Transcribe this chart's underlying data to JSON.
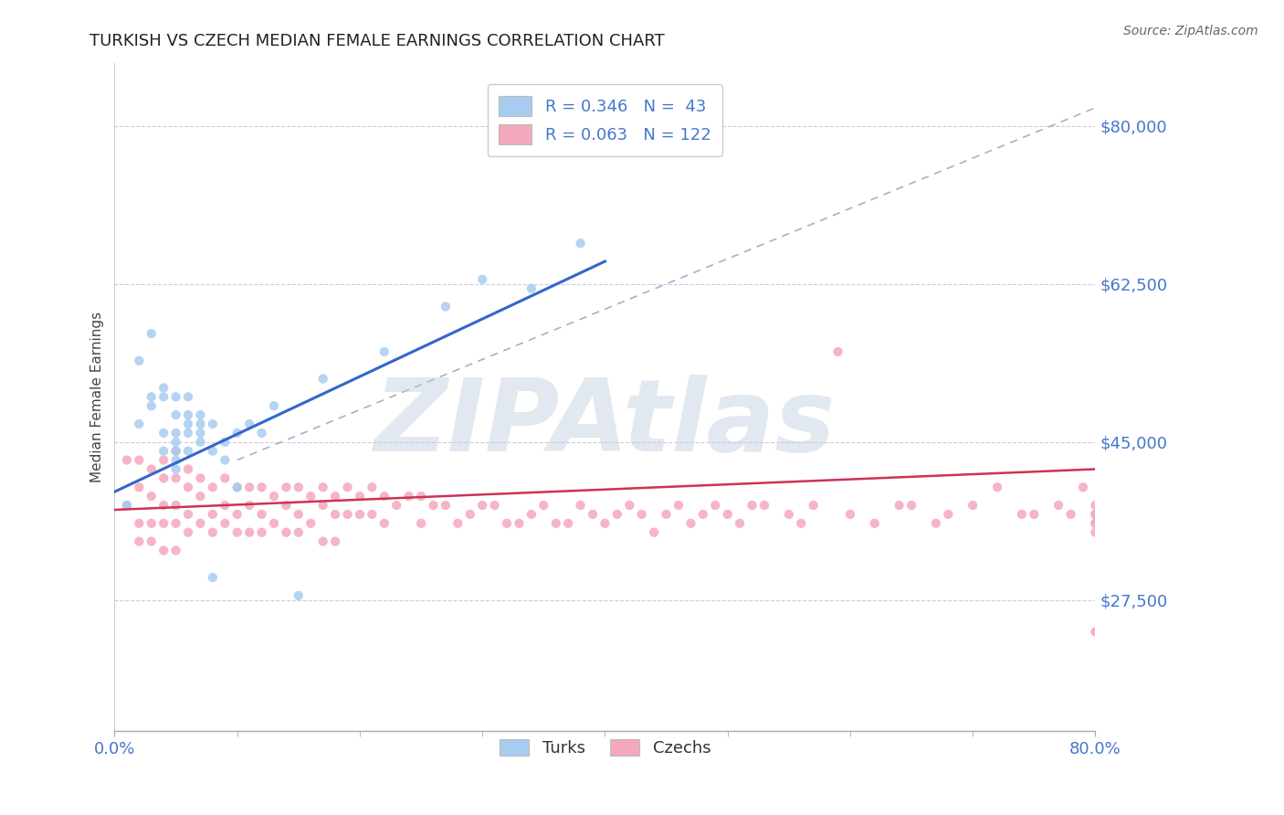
{
  "title": "TURKISH VS CZECH MEDIAN FEMALE EARNINGS CORRELATION CHART",
  "source": "Source: ZipAtlas.com",
  "ylabel": "Median Female Earnings",
  "xlim": [
    0.0,
    0.8
  ],
  "ylim": [
    13000,
    87000
  ],
  "yticks": [
    27500,
    45000,
    62500,
    80000
  ],
  "ytick_labels": [
    "$27,500",
    "$45,000",
    "$62,500",
    "$80,000"
  ],
  "turks_color": "#a8ccf0",
  "czechs_color": "#f4a8bc",
  "turks_line_color": "#3366cc",
  "czechs_line_color": "#cc3355",
  "ref_line_color": "#9999bb",
  "watermark_text": "ZIPAtlas",
  "watermark_color": "#c0ccdd",
  "title_color": "#222222",
  "axis_color": "#4477cc",
  "background_color": "#ffffff",
  "turks_x": [
    0.01,
    0.02,
    0.02,
    0.03,
    0.03,
    0.03,
    0.04,
    0.04,
    0.04,
    0.04,
    0.05,
    0.05,
    0.05,
    0.05,
    0.05,
    0.05,
    0.05,
    0.06,
    0.06,
    0.06,
    0.06,
    0.06,
    0.07,
    0.07,
    0.07,
    0.07,
    0.08,
    0.08,
    0.08,
    0.09,
    0.09,
    0.1,
    0.1,
    0.11,
    0.12,
    0.13,
    0.15,
    0.17,
    0.22,
    0.27,
    0.3,
    0.34,
    0.38
  ],
  "turks_y": [
    38000,
    54000,
    47000,
    50000,
    57000,
    49000,
    50000,
    51000,
    46000,
    44000,
    50000,
    48000,
    45000,
    46000,
    44000,
    42000,
    43000,
    50000,
    48000,
    47000,
    46000,
    44000,
    48000,
    47000,
    46000,
    45000,
    47000,
    44000,
    30000,
    45000,
    43000,
    46000,
    40000,
    47000,
    46000,
    49000,
    28000,
    52000,
    55000,
    60000,
    63000,
    62000,
    67000
  ],
  "czechs_x": [
    0.01,
    0.01,
    0.02,
    0.02,
    0.02,
    0.02,
    0.03,
    0.03,
    0.03,
    0.03,
    0.04,
    0.04,
    0.04,
    0.04,
    0.04,
    0.05,
    0.05,
    0.05,
    0.05,
    0.05,
    0.06,
    0.06,
    0.06,
    0.06,
    0.07,
    0.07,
    0.07,
    0.08,
    0.08,
    0.08,
    0.09,
    0.09,
    0.09,
    0.1,
    0.1,
    0.1,
    0.11,
    0.11,
    0.11,
    0.12,
    0.12,
    0.12,
    0.13,
    0.13,
    0.14,
    0.14,
    0.14,
    0.15,
    0.15,
    0.15,
    0.16,
    0.16,
    0.17,
    0.17,
    0.17,
    0.18,
    0.18,
    0.18,
    0.19,
    0.19,
    0.2,
    0.2,
    0.21,
    0.21,
    0.22,
    0.22,
    0.23,
    0.24,
    0.25,
    0.25,
    0.26,
    0.27,
    0.28,
    0.29,
    0.3,
    0.31,
    0.32,
    0.33,
    0.34,
    0.35,
    0.36,
    0.37,
    0.38,
    0.39,
    0.4,
    0.41,
    0.42,
    0.43,
    0.44,
    0.45,
    0.46,
    0.47,
    0.48,
    0.49,
    0.5,
    0.51,
    0.52,
    0.53,
    0.55,
    0.56,
    0.57,
    0.59,
    0.6,
    0.62,
    0.64,
    0.65,
    0.67,
    0.68,
    0.7,
    0.72,
    0.74,
    0.75,
    0.77,
    0.78,
    0.79,
    0.8,
    0.8,
    0.8,
    0.8,
    0.8,
    0.8,
    0.8
  ],
  "czechs_y": [
    43000,
    38000,
    43000,
    40000,
    36000,
    34000,
    42000,
    39000,
    36000,
    34000,
    43000,
    41000,
    38000,
    36000,
    33000,
    44000,
    41000,
    38000,
    36000,
    33000,
    42000,
    40000,
    37000,
    35000,
    41000,
    39000,
    36000,
    40000,
    37000,
    35000,
    41000,
    38000,
    36000,
    40000,
    37000,
    35000,
    40000,
    38000,
    35000,
    40000,
    37000,
    35000,
    39000,
    36000,
    40000,
    38000,
    35000,
    40000,
    37000,
    35000,
    39000,
    36000,
    40000,
    38000,
    34000,
    39000,
    37000,
    34000,
    40000,
    37000,
    39000,
    37000,
    40000,
    37000,
    39000,
    36000,
    38000,
    39000,
    39000,
    36000,
    38000,
    38000,
    36000,
    37000,
    38000,
    38000,
    36000,
    36000,
    37000,
    38000,
    36000,
    36000,
    38000,
    37000,
    36000,
    37000,
    38000,
    37000,
    35000,
    37000,
    38000,
    36000,
    37000,
    38000,
    37000,
    36000,
    38000,
    38000,
    37000,
    36000,
    38000,
    55000,
    37000,
    36000,
    38000,
    38000,
    36000,
    37000,
    38000,
    40000,
    37000,
    37000,
    38000,
    37000,
    40000,
    37000,
    36000,
    37000,
    38000,
    36000,
    24000,
    35000
  ],
  "turks_trendline_x": [
    0.0,
    0.4
  ],
  "turks_trendline_y": [
    39500,
    65000
  ],
  "czechs_trendline_x": [
    0.0,
    0.8
  ],
  "czechs_trendline_y": [
    37500,
    42000
  ],
  "ref_line_x": [
    0.18,
    0.8
  ],
  "ref_line_y": [
    80000,
    80000
  ],
  "diag_line_x": [
    0.1,
    0.8
  ],
  "diag_line_y": [
    43000,
    82000
  ]
}
